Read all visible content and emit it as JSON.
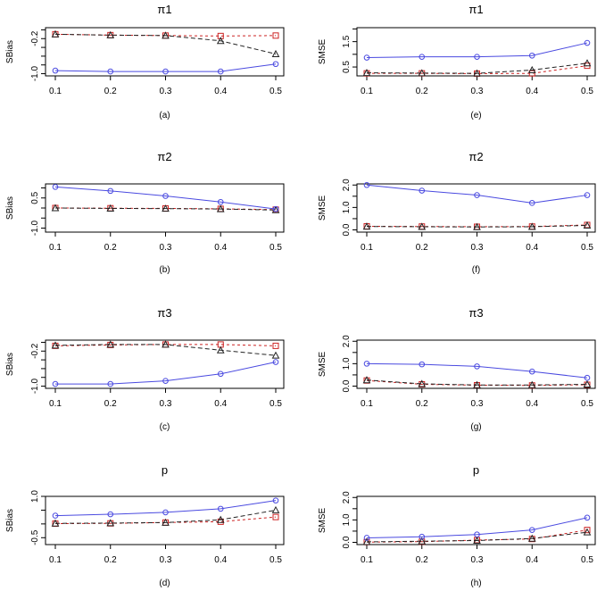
{
  "chart_data": [
    {
      "type": "line",
      "panel": "a",
      "title": "π1",
      "caption": "(a)",
      "ylabel": "SBias",
      "xlabel": "",
      "x": [
        0.1,
        0.2,
        0.3,
        0.4,
        0.5
      ],
      "x_tick_labels": [
        "0.1",
        "0.2",
        "0.3",
        "0.4",
        "0.5"
      ],
      "ylim": [
        -1.05,
        0.05
      ],
      "y_ticks": [
        0.0,
        -0.2,
        -0.4,
        -0.6,
        -0.8,
        -1.0
      ],
      "y_tick_labels": {
        "-0.2": "-0.2",
        "-1.0": "-1.0"
      },
      "series": [
        {
          "name": "circle",
          "color": "#4a4ae0",
          "dash": "solid",
          "marker": "circle",
          "values": [
            -0.93,
            -0.95,
            -0.95,
            -0.95,
            -0.78
          ]
        },
        {
          "name": "triangle",
          "color": "#222222",
          "dash": "long",
          "marker": "triangle",
          "values": [
            -0.1,
            -0.12,
            -0.13,
            -0.25,
            -0.55
          ]
        },
        {
          "name": "square",
          "color": "#cc2222",
          "dash": "short",
          "marker": "square",
          "values": [
            -0.1,
            -0.12,
            -0.13,
            -0.14,
            -0.13
          ]
        }
      ]
    },
    {
      "type": "line",
      "panel": "e",
      "title": "π1",
      "caption": "(e)",
      "ylabel": "SMSE",
      "xlabel": "",
      "x": [
        0.1,
        0.2,
        0.3,
        0.4,
        0.5
      ],
      "x_tick_labels": [
        "0.1",
        "0.2",
        "0.3",
        "0.4",
        "0.5"
      ],
      "ylim": [
        0.15,
        2.05
      ],
      "y_ticks": [
        0.5,
        1.0,
        1.5,
        2.0
      ],
      "y_tick_labels": {
        "0.5": "0.5",
        "1.5": "1.5"
      },
      "series": [
        {
          "name": "circle",
          "color": "#4a4ae0",
          "dash": "solid",
          "marker": "circle",
          "values": [
            0.87,
            0.9,
            0.9,
            0.95,
            1.45
          ]
        },
        {
          "name": "triangle",
          "color": "#222222",
          "dash": "long",
          "marker": "triangle",
          "values": [
            0.27,
            0.26,
            0.25,
            0.38,
            0.65
          ]
        },
        {
          "name": "square",
          "color": "#cc2222",
          "dash": "short",
          "marker": "square",
          "values": [
            0.25,
            0.25,
            0.24,
            0.25,
            0.55
          ]
        }
      ]
    },
    {
      "type": "line",
      "panel": "b",
      "title": "π2",
      "caption": "(b)",
      "ylabel": "SBias",
      "xlabel": "",
      "x": [
        0.1,
        0.2,
        0.3,
        0.4,
        0.5
      ],
      "x_tick_labels": [
        "0.1",
        "0.2",
        "0.3",
        "0.4",
        "0.5"
      ],
      "ylim": [
        -1.2,
        1.2
      ],
      "y_ticks": [
        1.0,
        0.5,
        0.0,
        -0.5,
        -1.0
      ],
      "y_tick_labels": {
        "0.5": "0.5",
        "-1.0": "-1.0"
      },
      "series": [
        {
          "name": "circle",
          "color": "#4a4ae0",
          "dash": "solid",
          "marker": "circle",
          "values": [
            1.05,
            0.85,
            0.6,
            0.3,
            -0.05
          ]
        },
        {
          "name": "triangle",
          "color": "#222222",
          "dash": "long",
          "marker": "triangle",
          "values": [
            0.0,
            -0.02,
            -0.03,
            -0.05,
            -0.1
          ]
        },
        {
          "name": "square",
          "color": "#cc2222",
          "dash": "short",
          "marker": "square",
          "values": [
            0.0,
            -0.01,
            -0.02,
            -0.04,
            -0.08
          ]
        }
      ]
    },
    {
      "type": "line",
      "panel": "f",
      "title": "π2",
      "caption": "(f)",
      "ylabel": "SMSE",
      "xlabel": "",
      "x": [
        0.1,
        0.2,
        0.3,
        0.4,
        0.5
      ],
      "x_tick_labels": [
        "0.1",
        "0.2",
        "0.3",
        "0.4",
        "0.5"
      ],
      "ylim": [
        -0.1,
        2.05
      ],
      "y_ticks": [
        0.0,
        0.5,
        1.0,
        1.5,
        2.0
      ],
      "y_tick_labels": {
        "0.0": "0.0",
        "1.0": "1.0",
        "2.0": "2.0"
      },
      "series": [
        {
          "name": "circle",
          "color": "#4a4ae0",
          "dash": "solid",
          "marker": "circle",
          "values": [
            2.0,
            1.75,
            1.55,
            1.2,
            1.55
          ]
        },
        {
          "name": "triangle",
          "color": "#222222",
          "dash": "long",
          "marker": "triangle",
          "values": [
            0.15,
            0.14,
            0.13,
            0.14,
            0.2
          ]
        },
        {
          "name": "square",
          "color": "#cc2222",
          "dash": "short",
          "marker": "square",
          "values": [
            0.16,
            0.15,
            0.14,
            0.15,
            0.22
          ]
        }
      ]
    },
    {
      "type": "line",
      "panel": "c",
      "title": "π3",
      "caption": "(c)",
      "ylabel": "SBias",
      "xlabel": "",
      "x": [
        0.1,
        0.2,
        0.3,
        0.4,
        0.5
      ],
      "x_tick_labels": [
        "0.1",
        "0.2",
        "0.3",
        "0.4",
        "0.5"
      ],
      "ylim": [
        -1.05,
        0.05
      ],
      "y_ticks": [
        0.0,
        -0.2,
        -0.4,
        -0.6,
        -0.8,
        -1.0
      ],
      "y_tick_labels": {
        "-0.2": "-0.2",
        "-1.0": "-1.0"
      },
      "series": [
        {
          "name": "circle",
          "color": "#4a4ae0",
          "dash": "solid",
          "marker": "circle",
          "values": [
            -0.95,
            -0.95,
            -0.88,
            -0.72,
            -0.45
          ]
        },
        {
          "name": "triangle",
          "color": "#222222",
          "dash": "long",
          "marker": "triangle",
          "values": [
            -0.07,
            -0.05,
            -0.05,
            -0.18,
            -0.3
          ]
        },
        {
          "name": "square",
          "color": "#cc2222",
          "dash": "short",
          "marker": "square",
          "values": [
            -0.08,
            -0.06,
            -0.05,
            -0.05,
            -0.08
          ]
        }
      ]
    },
    {
      "type": "line",
      "panel": "g",
      "title": "π3",
      "caption": "(g)",
      "ylabel": "SMSE",
      "xlabel": "",
      "x": [
        0.1,
        0.2,
        0.3,
        0.4,
        0.5
      ],
      "x_tick_labels": [
        "0.1",
        "0.2",
        "0.3",
        "0.4",
        "0.5"
      ],
      "ylim": [
        -0.1,
        2.05
      ],
      "y_ticks": [
        0.0,
        0.5,
        1.0,
        1.5,
        2.0
      ],
      "y_tick_labels": {
        "0.0": "0.0",
        "1.0": "1.0",
        "2.0": "2.0"
      },
      "series": [
        {
          "name": "circle",
          "color": "#4a4ae0",
          "dash": "solid",
          "marker": "circle",
          "values": [
            1.0,
            0.97,
            0.88,
            0.65,
            0.37
          ]
        },
        {
          "name": "triangle",
          "color": "#222222",
          "dash": "long",
          "marker": "triangle",
          "values": [
            0.27,
            0.1,
            0.05,
            0.05,
            0.08
          ]
        },
        {
          "name": "square",
          "color": "#cc2222",
          "dash": "short",
          "marker": "square",
          "values": [
            0.25,
            0.08,
            0.04,
            0.03,
            0.06
          ]
        }
      ]
    },
    {
      "type": "line",
      "panel": "d",
      "title": "p",
      "caption": "(d)",
      "ylabel": "SBias",
      "xlabel": "",
      "x": [
        0.1,
        0.2,
        0.3,
        0.4,
        0.5
      ],
      "x_tick_labels": [
        "0.1",
        "0.2",
        "0.3",
        "0.4",
        "0.5"
      ],
      "ylim": [
        -0.75,
        1.0
      ],
      "y_ticks": [
        1.0,
        0.5,
        0.0,
        -0.5
      ],
      "y_tick_labels": {
        "1.0": "1.0",
        "-0.5": "-0.5"
      },
      "series": [
        {
          "name": "circle",
          "color": "#4a4ae0",
          "dash": "solid",
          "marker": "circle",
          "values": [
            0.3,
            0.35,
            0.42,
            0.55,
            0.85
          ]
        },
        {
          "name": "triangle",
          "color": "#222222",
          "dash": "long",
          "marker": "triangle",
          "values": [
            0.02,
            0.03,
            0.05,
            0.15,
            0.5
          ]
        },
        {
          "name": "square",
          "color": "#cc2222",
          "dash": "short",
          "marker": "square",
          "values": [
            0.01,
            0.02,
            0.05,
            0.08,
            0.25
          ]
        }
      ]
    },
    {
      "type": "line",
      "panel": "h",
      "title": "p",
      "caption": "(h)",
      "ylabel": "SMSE",
      "xlabel": "",
      "x": [
        0.1,
        0.2,
        0.3,
        0.4,
        0.5
      ],
      "x_tick_labels": [
        "0.1",
        "0.2",
        "0.3",
        "0.4",
        "0.5"
      ],
      "ylim": [
        -0.1,
        2.05
      ],
      "y_ticks": [
        0.0,
        0.5,
        1.0,
        1.5,
        2.0
      ],
      "y_tick_labels": {
        "0.0": "0.0",
        "1.0": "1.0",
        "2.0": "2.0"
      },
      "series": [
        {
          "name": "circle",
          "color": "#4a4ae0",
          "dash": "solid",
          "marker": "circle",
          "values": [
            0.2,
            0.25,
            0.35,
            0.55,
            1.1
          ]
        },
        {
          "name": "triangle",
          "color": "#222222",
          "dash": "long",
          "marker": "triangle",
          "values": [
            0.02,
            0.05,
            0.08,
            0.17,
            0.45
          ]
        },
        {
          "name": "square",
          "color": "#cc2222",
          "dash": "short",
          "marker": "square",
          "values": [
            0.01,
            0.03,
            0.1,
            0.15,
            0.55
          ]
        }
      ]
    }
  ]
}
